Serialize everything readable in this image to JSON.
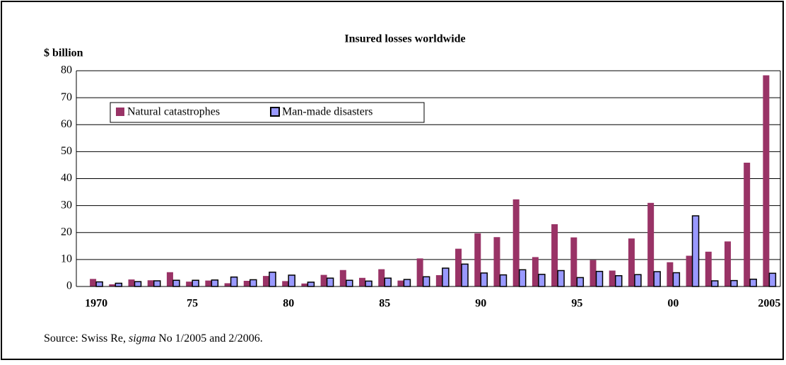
{
  "chart_data": {
    "type": "bar",
    "title": "Insured losses worldwide",
    "y_label": "$ billion",
    "categories": [
      "1970",
      null,
      null,
      null,
      null,
      "75",
      null,
      null,
      null,
      null,
      "80",
      null,
      null,
      null,
      null,
      "85",
      null,
      null,
      null,
      null,
      "90",
      null,
      null,
      null,
      null,
      "95",
      null,
      null,
      null,
      null,
      "00",
      null,
      null,
      null,
      null,
      "2005"
    ],
    "series": [
      {
        "name": "Natural catastrophes",
        "color": "#993366",
        "values": [
          2.8,
          0.8,
          2.6,
          2.3,
          5.3,
          1.8,
          2.2,
          1.2,
          2.1,
          3.9,
          2.0,
          1.1,
          4.3,
          6.1,
          3.2,
          6.4,
          2.2,
          10.4,
          4.2,
          14.0,
          19.7,
          18.3,
          32.3,
          10.9,
          23.1,
          18.2,
          9.8,
          5.9,
          17.8,
          31.0,
          9.0,
          11.4,
          12.9,
          16.7,
          45.9,
          78.3
        ]
      },
      {
        "name": "Man-made disasters",
        "color": "#9999ff",
        "values": [
          1.7,
          1.2,
          1.8,
          2.1,
          2.3,
          2.3,
          2.4,
          3.5,
          2.5,
          5.3,
          4.2,
          1.6,
          3.1,
          2.3,
          2.0,
          3.1,
          2.6,
          3.6,
          6.8,
          8.3,
          5.0,
          4.3,
          6.2,
          4.5,
          5.9,
          3.3,
          5.6,
          4.0,
          4.4,
          5.5,
          5.1,
          26.2,
          2.1,
          2.2,
          2.7,
          4.9
        ]
      }
    ],
    "ylim": [
      0,
      80
    ],
    "yticks": [
      0,
      10,
      20,
      30,
      40,
      50,
      60,
      70,
      80
    ],
    "grid": true,
    "source": {
      "prefix": "Source: Swiss Re,",
      "italic": "sigma",
      "suffix": "No 1/2005 and 2/2006."
    }
  }
}
